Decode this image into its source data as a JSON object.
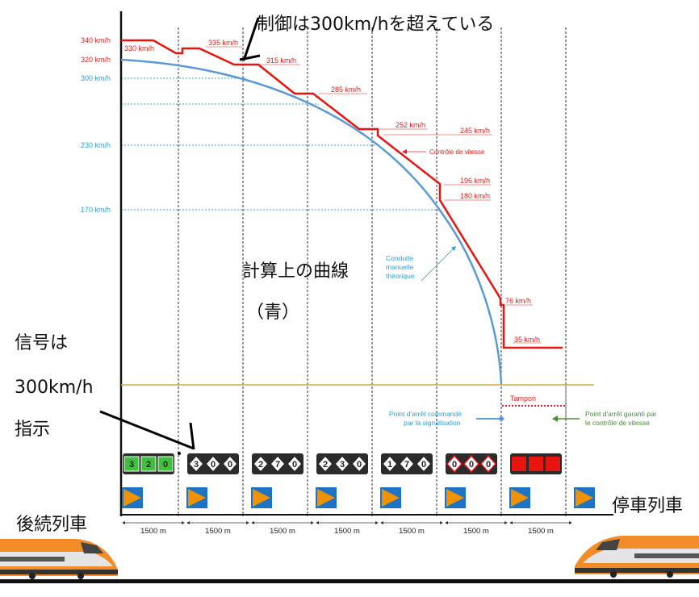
{
  "annotations": {
    "control_exceeds": "制御は300km/hを超えている",
    "calc_curve_1": "計算上の曲線",
    "calc_curve_2": "（青）",
    "signal_1": "信号は",
    "signal_2": "300km/h",
    "signal_3": "指示",
    "trailing_train": "後続列車",
    "stopped_train": "停車列車"
  },
  "axis_labels": {
    "red": [
      "340 km/h",
      "320 km/h"
    ],
    "blue": [
      "300 km/h",
      "230 km/h",
      "170 km/h"
    ]
  },
  "segment_labels": [
    "330 km/h",
    "335 km/h",
    "315 km/h",
    "285 km/h",
    "252 km/h",
    "245 km/h",
    "196 km/h",
    "180 km/h",
    "76 km/h",
    "35 km/h"
  ],
  "legend": {
    "speed_control": "Contrôle de vitesse",
    "manual_1": "Conduite",
    "manual_2": "manuelle",
    "manual_3": "théorique",
    "tampon": "Tampon",
    "stop_signal_1": "Point d'arrêt commandé",
    "stop_signal_2": "par la signalisation",
    "stop_control_1": "Point d'arrêt garanti par",
    "stop_control_2": "le contrôle de vitesse"
  },
  "signals": [
    {
      "digits": [
        "3",
        "2",
        "0"
      ],
      "style": "green"
    },
    {
      "digits": [
        "3",
        "0",
        "0"
      ],
      "style": "white"
    },
    {
      "digits": [
        "2",
        "7",
        "0"
      ],
      "style": "white"
    },
    {
      "digits": [
        "2",
        "3",
        "0"
      ],
      "style": "white"
    },
    {
      "digits": [
        "1",
        "7",
        "0"
      ],
      "style": "white"
    },
    {
      "digits": [
        "0",
        "0",
        "0"
      ],
      "style": "red-outline"
    },
    {
      "digits": [
        "",
        "",
        ""
      ],
      "style": "red"
    }
  ],
  "distances": [
    "1500 m",
    "1500 m",
    "1500 m",
    "1500 m",
    "1500 m",
    "1500 m",
    "1500 m"
  ],
  "colors": {
    "control_line": "#e8140f",
    "theoretical_curve": "#5b9bd5",
    "guide_dotted": "#2a9fd6",
    "tampon_line": "#d4a54a",
    "marker_orange": "#f29100",
    "marker_blue": "#1d74c4"
  }
}
